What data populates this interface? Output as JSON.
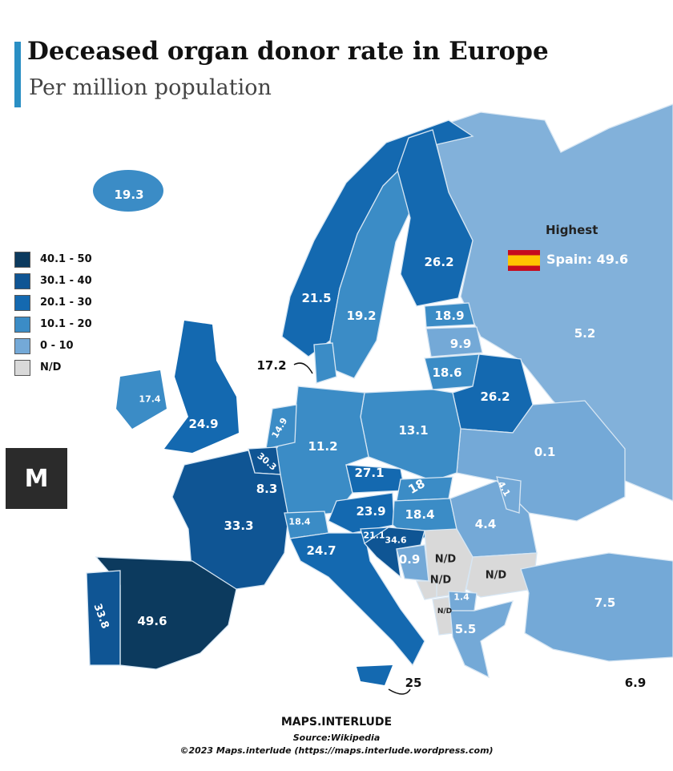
{
  "header": {
    "title": "Deceased organ donor rate in Europe",
    "subtitle": "Per million population"
  },
  "colors": {
    "40.1-50": "#0c3a5e",
    "30.1-40": "#0f5594",
    "20.1-30": "#1469b0",
    "10.1-20": "#3b8cc6",
    "0-10": "#74a9d7",
    "N/D": "#d9d9d9",
    "accent": "#2a8fc4"
  },
  "legend": [
    {
      "label": "40.1 - 50",
      "color": "#0c3a5e"
    },
    {
      "label": "30.1 - 40",
      "color": "#0f5594"
    },
    {
      "label": "20.1 - 30",
      "color": "#1469b0"
    },
    {
      "label": "10.1 - 20",
      "color": "#3b8cc6"
    },
    {
      "label": "0 - 10",
      "color": "#74a9d7"
    },
    {
      "label": "N/D",
      "color": "#d9d9d9"
    }
  ],
  "highest": {
    "heading": "Highest",
    "text": "Spain: 49.6",
    "flag_icon": "spain-flag"
  },
  "regions": {
    "iceland": "19.3",
    "norway": "21.5",
    "sweden": "19.2",
    "finland": "26.2",
    "russia": "5.2",
    "estonia": "18.9",
    "latvia": "9.9",
    "lithuania": "18.6",
    "belarus": "26.2",
    "denmark": "17.2",
    "ireland": "17.4",
    "uk": "24.9",
    "netherlands": "14.9",
    "belgium": "30.3",
    "luxembourg": "8.3",
    "germany": "11.2",
    "poland": "13.1",
    "ukraine": "0.1",
    "czechia": "27.1",
    "slovakia": "18",
    "france": "33.3",
    "switzerland": "18.4",
    "austria": "23.9",
    "hungary": "18.4",
    "moldova": "4.1",
    "romania": "4.4",
    "slovenia": "21.1",
    "croatia": "34.6",
    "bosnia": "0.9",
    "serbia": "N/D",
    "montenegro": "N/D",
    "bulgaria": "N/D",
    "albania": "N/D",
    "macedonia": "1.4",
    "greece": "5.5",
    "turkey": "7.5",
    "italy": "24.7",
    "portugal": "33.8",
    "spain": "49.6",
    "malta": "25",
    "cyprus": "6.9"
  },
  "logo": {
    "text": "M"
  },
  "footer": {
    "brand": "MAPS.INTERLUDE",
    "source": "Source:Wikipedia",
    "copyright": "©2023 Maps.interlude (https://maps.interlude.wordpress.com)"
  }
}
